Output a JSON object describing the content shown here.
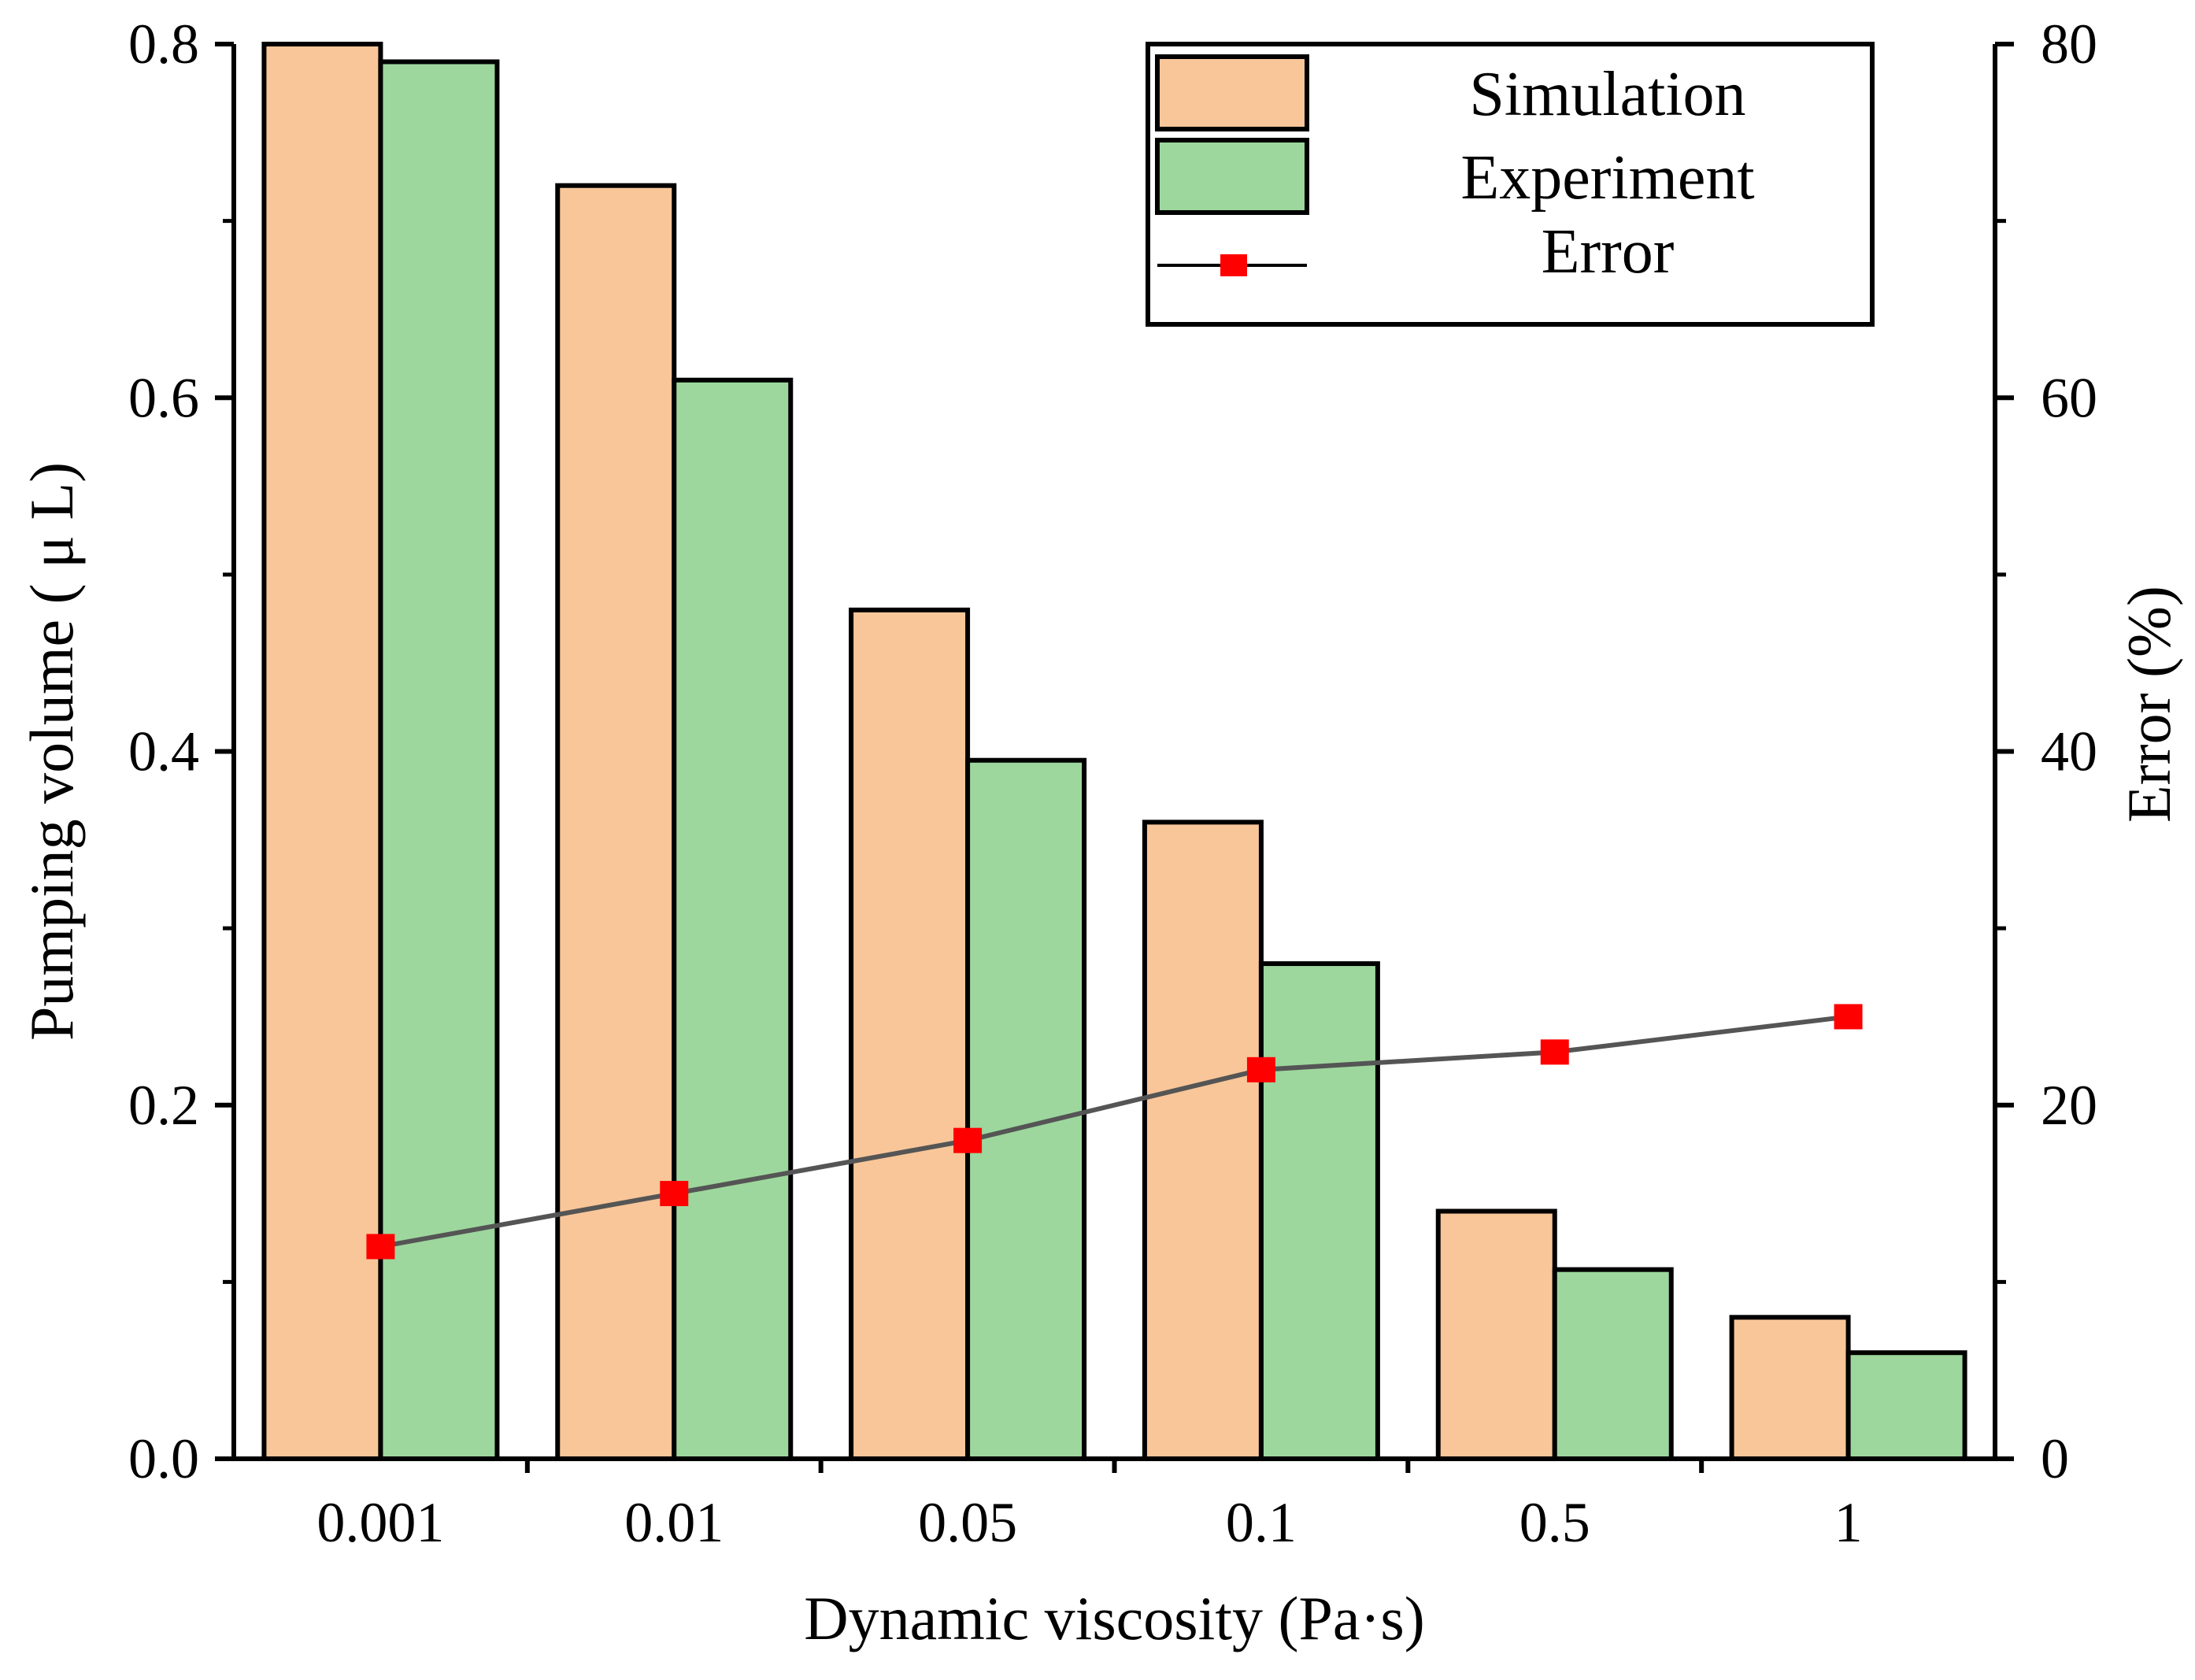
{
  "chart_data": {
    "type": "bar",
    "title": "",
    "xlabel": "Dynamic viscosity (Pa·s)",
    "ylabel": "Pumping volume ( μ L)",
    "y2label": "Error (%)",
    "categories": [
      "0.001",
      "0.01",
      "0.05",
      "0.1",
      "0.5",
      "1"
    ],
    "ylim": [
      0,
      0.8
    ],
    "yticks": [
      "0.0",
      "0.2",
      "0.4",
      "0.6",
      "0.8"
    ],
    "y2lim": [
      0,
      80
    ],
    "y2ticks": [
      "0",
      "20",
      "40",
      "60",
      "80"
    ],
    "series": [
      {
        "name": "Simulation",
        "type": "bar",
        "axis": "left",
        "color": "#f9c699",
        "values": [
          0.8,
          0.72,
          0.48,
          0.36,
          0.14,
          0.08
        ]
      },
      {
        "name": "Experiment",
        "type": "bar",
        "axis": "left",
        "color": "#9dd79d",
        "values": [
          0.79,
          0.61,
          0.395,
          0.28,
          0.107,
          0.06
        ]
      },
      {
        "name": "Error",
        "type": "line",
        "axis": "right",
        "color": "#555555",
        "marker_color": "#ff0000",
        "values": [
          12,
          15,
          18,
          22,
          23,
          25
        ]
      }
    ],
    "legend": {
      "position": "top-right",
      "entries": [
        "Simulation",
        "Experiment",
        "Error"
      ]
    }
  }
}
